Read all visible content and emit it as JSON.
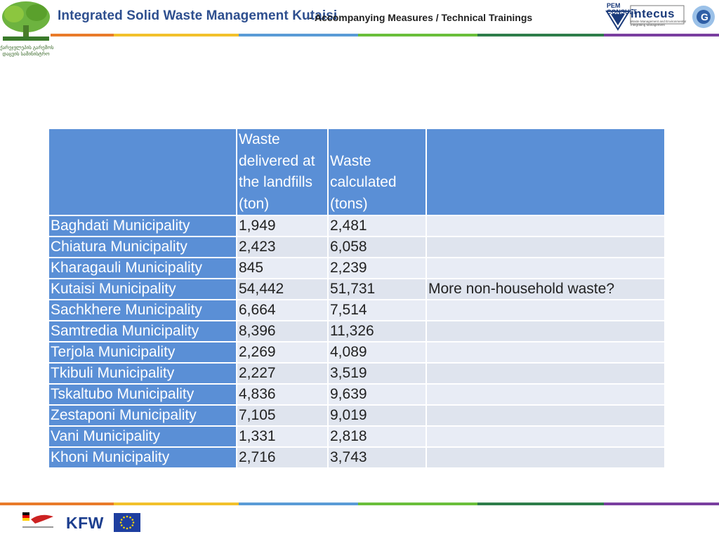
{
  "header": {
    "title": "Integrated Solid Waste Management Kutaisi",
    "subtitle": "- Accompanying Measures / Technical Trainings",
    "tree_logo_caption": "ქარეჯვლეპის გარემოს\nდაცვის სამინისტრო",
    "right_logos": {
      "pem": "PEM\nCONSULT",
      "intecus": "intecus",
      "intecus_sub": "Waste Management and Environmental Integrating Management"
    }
  },
  "colors": {
    "stripe": [
      "#e97b2a",
      "#f2c12b",
      "#5a9bd6",
      "#6abf3a",
      "#2e7d4a",
      "#7a3fa0"
    ],
    "header_cell": "#5a8fd6",
    "row_bg": "#e8ecf5"
  },
  "table": {
    "headers": [
      "",
      "Waste delivered at the landfills (ton)",
      "Waste calculated (tons)",
      ""
    ],
    "rows": [
      {
        "municipality": "Baghdati Municipality",
        "delivered": "1,949",
        "calculated": "2,481",
        "note": ""
      },
      {
        "municipality": "Chiatura Municipality",
        "delivered": "2,423",
        "calculated": "6,058",
        "note": ""
      },
      {
        "municipality": "Kharagauli Municipality",
        "delivered": "845",
        "calculated": "2,239",
        "note": ""
      },
      {
        "municipality": "Kutaisi Municipality",
        "delivered": "54,442",
        "calculated": "51,731",
        "note": "More non-household waste?"
      },
      {
        "municipality": "Sachkhere Municipality",
        "delivered": "6,664",
        "calculated": "7,514",
        "note": ""
      },
      {
        "municipality": "Samtredia Municipality",
        "delivered": "8,396",
        "calculated": "11,326",
        "note": ""
      },
      {
        "municipality": "Terjola Municipality",
        "delivered": "2,269",
        "calculated": "4,089",
        "note": ""
      },
      {
        "municipality": "Tkibuli Municipality",
        "delivered": "2,227",
        "calculated": "3,519",
        "note": ""
      },
      {
        "municipality": "Tskaltubo Municipality",
        "delivered": "4,836",
        "calculated": "9,639",
        "note": ""
      },
      {
        "municipality": "Zestaponi Municipality",
        "delivered": "7,105",
        "calculated": "9,019",
        "note": ""
      },
      {
        "municipality": "Vani Municipality",
        "delivered": "1,331",
        "calculated": "2,818",
        "note": ""
      },
      {
        "municipality": "Khoni Municipality",
        "delivered": "2,716",
        "calculated": "3,743",
        "note": ""
      }
    ]
  },
  "footer": {
    "kfw": "KFW"
  }
}
